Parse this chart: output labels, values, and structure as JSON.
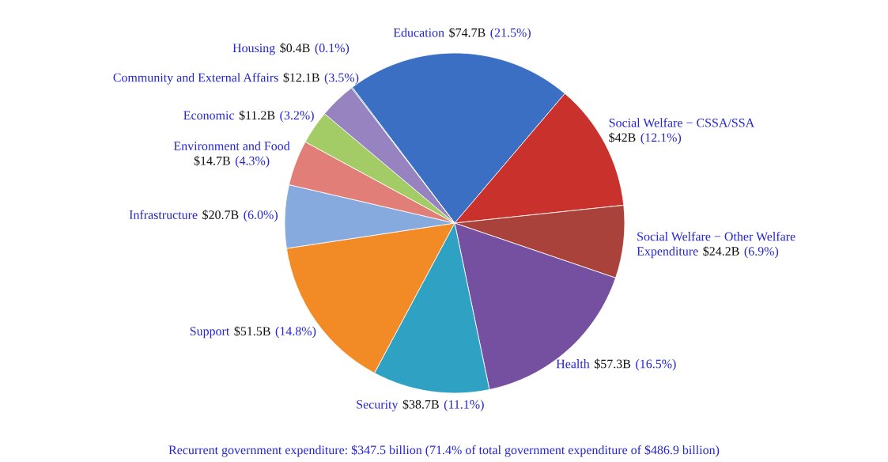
{
  "chart_data": {
    "type": "pie",
    "categories": [
      "Education",
      "Social Welfare − CSSA/SSA",
      "Social Welfare − Other Welfare\nExpenditure",
      "Health",
      "Security",
      "Support",
      "Infrastructure",
      "Environment and Food",
      "Economic",
      "Community and External Affairs",
      "Housing"
    ],
    "values": [
      21.5,
      12.1,
      6.9,
      16.5,
      11.1,
      14.8,
      6.0,
      4.3,
      3.2,
      3.5,
      0.1
    ],
    "value_labels": [
      "$74.7B (21.5%)",
      "$42B (12.1%)",
      "$24.2B (6.9%)",
      "$57.3B (16.5%)",
      "$38.7B (11.1%)",
      "$51.5B (14.8%)",
      "$20.7B (6.0%)",
      "$14.7B (4.3%)",
      "$11.2B (3.2%)",
      "$12.1B (3.5%)",
      "$0.4B (0.1%)"
    ],
    "colors": [
      "#3a6fc4",
      "#c8312c",
      "#a8423b",
      "#7650a0",
      "#2fa1c2",
      "#f28a25",
      "#86aade",
      "#e27e78",
      "#a3cc66",
      "#9783c0",
      "#5a8fd0"
    ],
    "annotations": [
      "Recurrent government expenditure: $347.5 billion (71.4% of total government expenditure of $486.9 billion)"
    ]
  }
}
